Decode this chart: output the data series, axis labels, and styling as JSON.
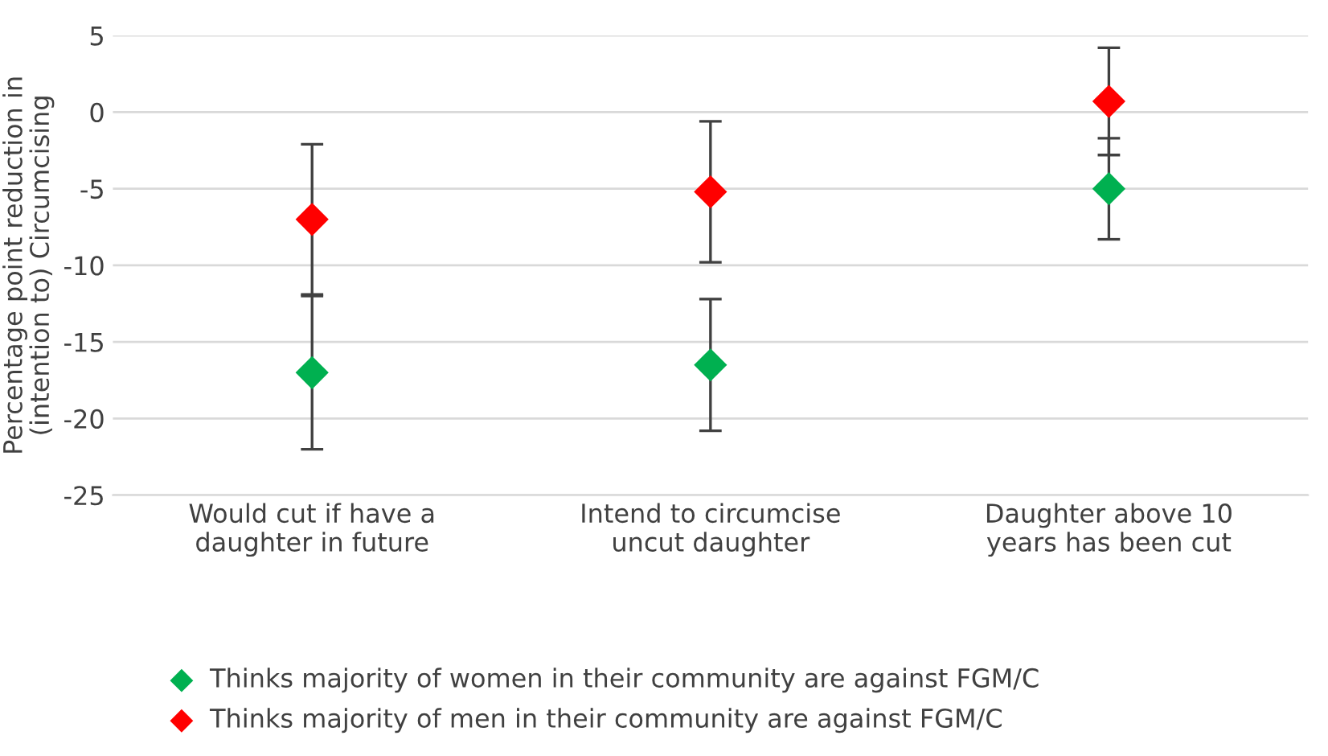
{
  "chart_data": {
    "type": "scatter",
    "ylabel": "Percentage point reduction in (intention to) Circumcising",
    "categories": [
      "Would cut if have a daughter in future",
      "Intend to circumcise uncut daughter",
      "Daughter above 10 years has been cut"
    ],
    "series": [
      {
        "name": "Thinks majority of women in their community are against FGM/C",
        "color": "#00b050",
        "values": [
          -17,
          -16.5,
          -5
        ],
        "errors": [
          5,
          4.3,
          3.3
        ]
      },
      {
        "name": "Thinks majority of men in their community are against FGM/C",
        "color": "#ff0000",
        "values": [
          -7,
          -5.2,
          0.7
        ],
        "errors": [
          4.9,
          4.6,
          3.5
        ]
      }
    ],
    "ylim": [
      -25,
      5
    ],
    "yticks": [
      {
        "value": -25,
        "label": "-25"
      },
      {
        "value": -20,
        "label": "-20"
      },
      {
        "value": -15,
        "label": "-15"
      },
      {
        "value": -10,
        "label": "-10"
      },
      {
        "value": -5,
        "label": "-5"
      },
      0,
      5
    ],
    "grid": "y",
    "legend": "bottom",
    "marker": "diamond"
  }
}
